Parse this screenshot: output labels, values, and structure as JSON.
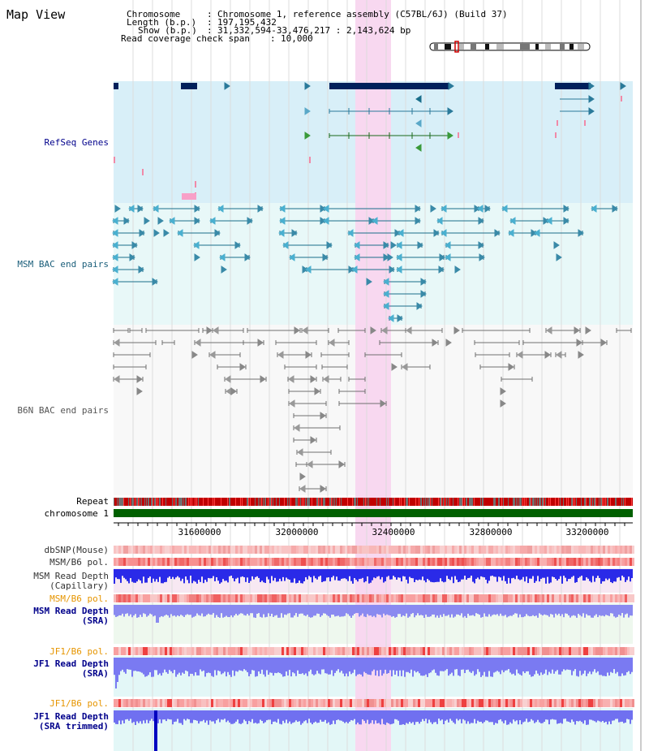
{
  "header": {
    "title": "Map View",
    "chromosome_label": "Chromosome",
    "chromosome_value": "Chromosome 1, reference assembly (C57BL/6J) (Build 37)",
    "length_label": "Length (b.p.)",
    "length_value": "197,195,432",
    "show_label": "Show (b.p.)",
    "show_value": "31,332,594-33,476,217 : 2,143,624 bp",
    "coverage_label": "Read coverage check span",
    "coverage_value": "10,000"
  },
  "tracks": {
    "refseq_label": "RefSeq Genes",
    "msm_bac_label": "MSM BAC end pairs",
    "b6n_bac_label": "B6N BAC end pairs",
    "repeat_label": "Repeat",
    "chromosome_label": "chromosome 1",
    "dbsnp_label": "dbSNP(Mouse)",
    "msm_pol_label_1": "MSM/B6 pol.",
    "msm_depth_cap_label_1": "MSM Read Depth",
    "msm_depth_cap_label_2": "(Capillary)",
    "msm_pol_label_2": "MSM/B6 pol.",
    "msm_depth_sra_label_1": "MSM Read Depth",
    "msm_depth_sra_label_2": "(SRA)",
    "jf1_pol_label_1": "JF1/B6 pol.",
    "jf1_depth_sra_label_1": "JF1 Read Depth",
    "jf1_depth_sra_label_2": "(SRA)",
    "jf1_pol_label_2": "JF1/B6 pol.",
    "jf1_depth_trim_label_1": "JF1 Read Depth",
    "jf1_depth_trim_label_2": "(SRA trimmed)"
  },
  "ruler": {
    "ticks": [
      "31600000",
      "32000000",
      "32400000",
      "32800000",
      "33200000"
    ]
  },
  "colors": {
    "refseq_bg": "#d8eff8",
    "msm_bg": "#e8f8f8",
    "b6n_bg": "#f8f8f8",
    "highlight": "#f8d8f0",
    "gene_blue": "#00205b",
    "msm_teal": "#1a6e8a",
    "b6n_gray": "#707070",
    "chromosome_green": "#006000",
    "depth_blue": "#2020e0",
    "depth_light_blue": "#8080f0",
    "label_navy": "#00008b",
    "label_orange": "#e69500"
  }
}
